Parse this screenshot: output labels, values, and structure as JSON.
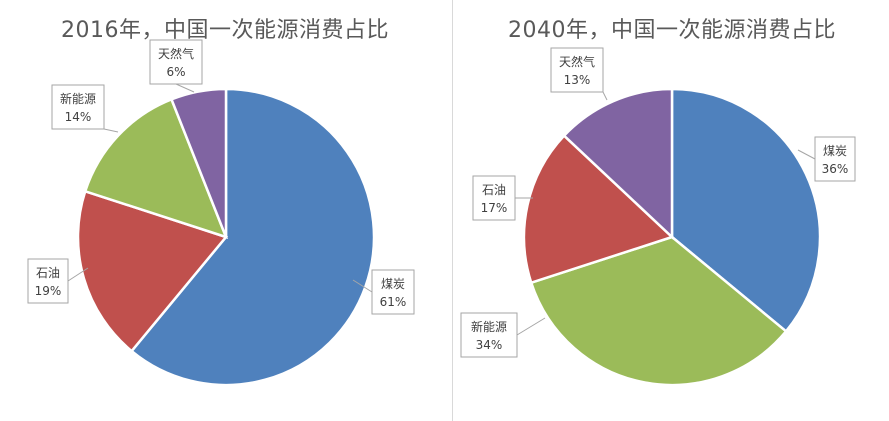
{
  "chart_data": [
    {
      "type": "pie",
      "title": "2016年，中国一次能源消费占比",
      "slices": [
        {
          "label": "煤炭",
          "value": 61,
          "value_label": "61%",
          "color": "#4F81BD"
        },
        {
          "label": "石油",
          "value": 19,
          "value_label": "19%",
          "color": "#C0504D"
        },
        {
          "label": "新能源",
          "value": 14,
          "value_label": "14%",
          "color": "#9BBB59"
        },
        {
          "label": "天然气",
          "value": 6,
          "value_label": "6%",
          "color": "#8064A2"
        }
      ]
    },
    {
      "type": "pie",
      "title": "2040年，中国一次能源消费占比",
      "slices": [
        {
          "label": "煤炭",
          "value": 36,
          "value_label": "36%",
          "color": "#4F81BD"
        },
        {
          "label": "新能源",
          "value": 34,
          "value_label": "34%",
          "color": "#9BBB59"
        },
        {
          "label": "石油",
          "value": 17,
          "value_label": "17%",
          "color": "#C0504D"
        },
        {
          "label": "天然气",
          "value": 13,
          "value_label": "13%",
          "color": "#8064A2"
        }
      ]
    }
  ]
}
